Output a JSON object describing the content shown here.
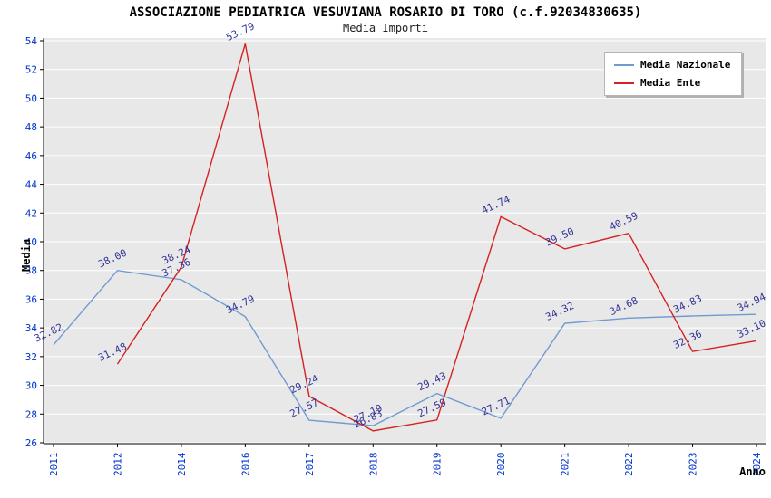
{
  "header": {
    "title": "ASSOCIAZIONE PEDIATRICA VESUVIANA ROSARIO DI TORO (c.f.92034830635)",
    "subtitle": "Media Importi"
  },
  "colors": {
    "plot_bg": "#e8e8e8",
    "grid": "#ffffff",
    "axis": "#000000",
    "tick_label": "#0033cc",
    "value_label": "#333399",
    "nazionale_line": "#6e9bd1",
    "ente_line": "#d42222"
  },
  "chart_data": {
    "type": "line",
    "title": "ASSOCIAZIONE PEDIATRICA VESUVIANA ROSARIO DI TORO (c.f.92034830635)",
    "subtitle": "Media Importi",
    "xlabel": "Anno",
    "ylabel": "Media",
    "ylim": [
      26,
      54
    ],
    "yticks": [
      26,
      28,
      30,
      32,
      34,
      36,
      38,
      40,
      42,
      44,
      46,
      48,
      50,
      52,
      54
    ],
    "grid": "horizontal-white",
    "legend_position": "top-right",
    "value_labels": true,
    "categories": [
      "2011",
      "2012",
      "2014",
      "2016",
      "2017",
      "2018",
      "2019",
      "2020",
      "2021",
      "2022",
      "2023",
      "2024"
    ],
    "series": [
      {
        "name": "Media Nazionale",
        "color": "#6e9bd1",
        "values": [
          32.82,
          38.0,
          37.36,
          34.79,
          27.57,
          27.19,
          29.43,
          27.71,
          34.32,
          34.68,
          34.83,
          34.94
        ]
      },
      {
        "name": "Media Ente",
        "color": "#d42222",
        "values": [
          null,
          31.48,
          38.24,
          53.79,
          29.24,
          26.83,
          27.59,
          41.74,
          39.5,
          40.59,
          32.36,
          33.1
        ]
      }
    ]
  }
}
